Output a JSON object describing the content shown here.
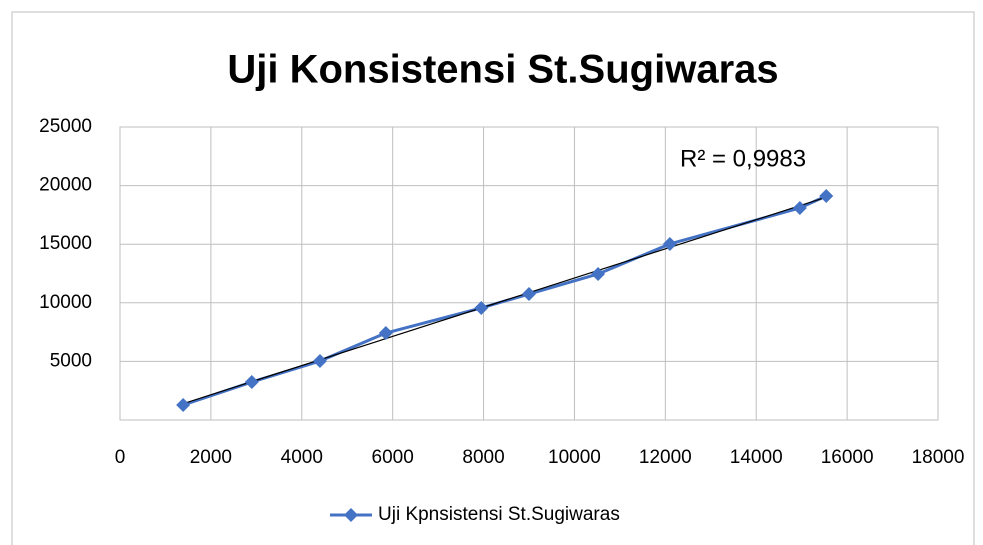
{
  "chart_data": {
    "type": "line",
    "title": "Uji Konsistensi St.Sugiwaras",
    "annotation": "R² = 0,9983",
    "trendline": true,
    "grid": true,
    "legend": "bottom",
    "xlim": [
      0,
      18000
    ],
    "xticks": [
      0,
      2000,
      4000,
      6000,
      8000,
      10000,
      12000,
      14000,
      16000,
      18000
    ],
    "ylim": [
      0,
      25000
    ],
    "yticks": [
      5000,
      10000,
      15000,
      20000,
      25000
    ],
    "x": [
      1390,
      2900,
      4400,
      5850,
      7950,
      9000,
      10520,
      12100,
      14960,
      15540
    ],
    "series": [
      {
        "name": "Uji Kpnsistensi St.Sugiwaras",
        "color": "#4472c4",
        "values": [
          1280,
          3240,
          5030,
          7420,
          9560,
          10750,
          12460,
          15020,
          18090,
          19110
        ]
      }
    ]
  }
}
